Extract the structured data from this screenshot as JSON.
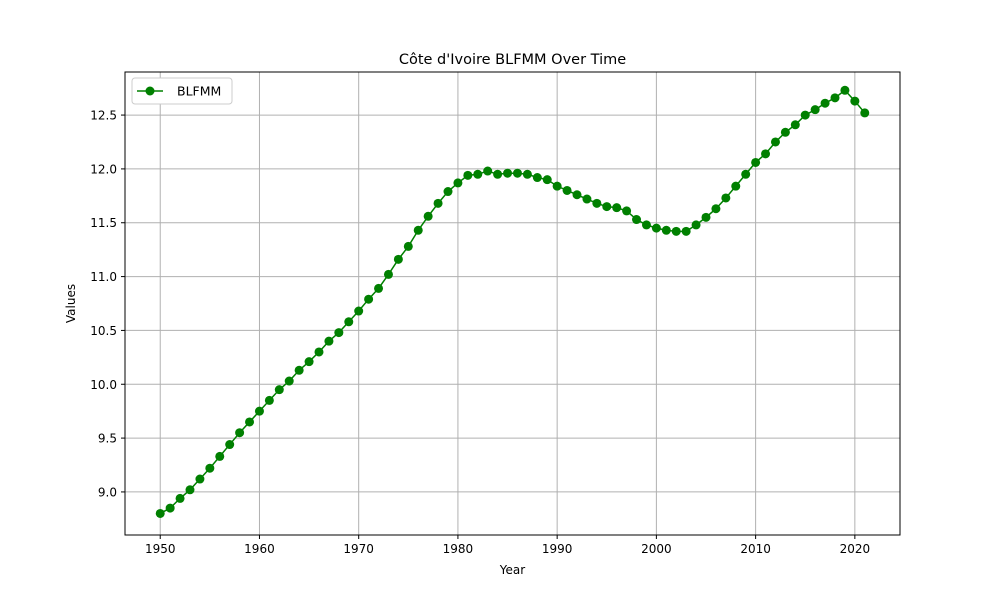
{
  "chart_data": {
    "type": "line",
    "title": "Côte d'Ivoire BLFMM Over Time",
    "xlabel": "Year",
    "ylabel": "Values",
    "xlim": [
      1946.45,
      2024.55
    ],
    "ylim": [
      8.6,
      12.9
    ],
    "xticks": [
      1950,
      1960,
      1970,
      1980,
      1990,
      2000,
      2010,
      2020
    ],
    "yticks": [
      9.0,
      9.5,
      10.0,
      10.5,
      11.0,
      11.5,
      12.0,
      12.5
    ],
    "grid": true,
    "legend_position": "top-left",
    "series": [
      {
        "name": "BLFMM",
        "color": "#008000",
        "marker": "circle",
        "x": [
          1950,
          1951,
          1952,
          1953,
          1954,
          1955,
          1956,
          1957,
          1958,
          1959,
          1960,
          1961,
          1962,
          1963,
          1964,
          1965,
          1966,
          1967,
          1968,
          1969,
          1970,
          1971,
          1972,
          1973,
          1974,
          1975,
          1976,
          1977,
          1978,
          1979,
          1980,
          1981,
          1982,
          1983,
          1984,
          1985,
          1986,
          1987,
          1988,
          1989,
          1990,
          1991,
          1992,
          1993,
          1994,
          1995,
          1996,
          1997,
          1998,
          1999,
          2000,
          2001,
          2002,
          2003,
          2004,
          2005,
          2006,
          2007,
          2008,
          2009,
          2010,
          2011,
          2012,
          2013,
          2014,
          2015,
          2016,
          2017,
          2018,
          2019,
          2020,
          2021
        ],
        "y": [
          8.8,
          8.85,
          8.94,
          9.02,
          9.12,
          9.22,
          9.33,
          9.44,
          9.55,
          9.65,
          9.75,
          9.85,
          9.95,
          10.03,
          10.13,
          10.21,
          10.3,
          10.4,
          10.48,
          10.58,
          10.68,
          10.79,
          10.89,
          11.02,
          11.16,
          11.28,
          11.43,
          11.56,
          11.68,
          11.79,
          11.87,
          11.94,
          11.95,
          11.98,
          11.95,
          11.96,
          11.96,
          11.95,
          11.92,
          11.9,
          11.84,
          11.8,
          11.76,
          11.72,
          11.68,
          11.65,
          11.64,
          11.61,
          11.53,
          11.48,
          11.45,
          11.43,
          11.42,
          11.42,
          11.48,
          11.55,
          11.63,
          11.73,
          11.84,
          11.95,
          12.06,
          12.14,
          12.25,
          12.34,
          12.41,
          12.5,
          12.55,
          12.61,
          12.66,
          12.73,
          12.63,
          12.52
        ]
      }
    ]
  }
}
